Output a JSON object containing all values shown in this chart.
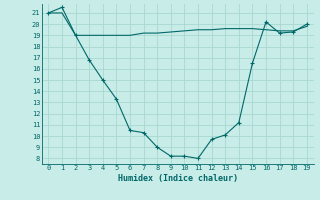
{
  "xlabel": "Humidex (Indice chaleur)",
  "bg_color": "#c8ece8",
  "grid_color": "#a8d8d0",
  "line_color": "#006868",
  "x_ticks": [
    0,
    1,
    2,
    3,
    4,
    5,
    6,
    7,
    8,
    9,
    10,
    11,
    12,
    13,
    14,
    15,
    16,
    17,
    18,
    19
  ],
  "y_ticks": [
    8,
    9,
    10,
    11,
    12,
    13,
    14,
    15,
    16,
    17,
    18,
    19,
    20,
    21
  ],
  "ylim": [
    7.5,
    21.8
  ],
  "xlim": [
    -0.5,
    19.5
  ],
  "line1_x": [
    0,
    1,
    2,
    3,
    4,
    5,
    6,
    7,
    8,
    9,
    10,
    11,
    12,
    13,
    14,
    15,
    16,
    17,
    18,
    19
  ],
  "line1_y": [
    21.0,
    21.0,
    19.0,
    19.0,
    19.0,
    19.0,
    19.0,
    19.2,
    19.2,
    19.3,
    19.4,
    19.5,
    19.5,
    19.6,
    19.6,
    19.6,
    19.5,
    19.4,
    19.4,
    19.8
  ],
  "line2_x": [
    0,
    1,
    2,
    3,
    4,
    5,
    6,
    7,
    8,
    9,
    10,
    11,
    12,
    13,
    14,
    15,
    16,
    17,
    18,
    19
  ],
  "line2_y": [
    21.0,
    21.5,
    19.0,
    16.8,
    15.0,
    13.3,
    10.5,
    10.3,
    9.0,
    8.2,
    8.2,
    8.0,
    9.7,
    10.1,
    11.2,
    16.5,
    20.2,
    19.2,
    19.3,
    20.0
  ]
}
